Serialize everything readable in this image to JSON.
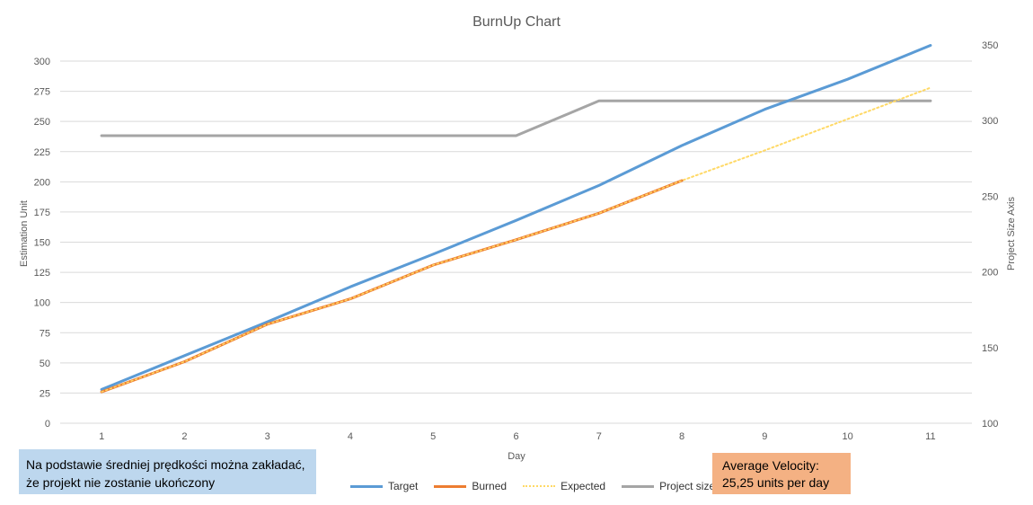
{
  "chart_data": {
    "type": "line",
    "title": "BurnUp Chart",
    "xlabel": "Day",
    "ylabel": "Estimation Unit",
    "y2label": "Project Size Axis",
    "x": [
      1,
      2,
      3,
      4,
      5,
      6,
      7,
      8,
      9,
      10,
      11
    ],
    "ylim": [
      0,
      300
    ],
    "yticks": [
      0,
      25,
      50,
      75,
      100,
      125,
      150,
      175,
      200,
      225,
      250,
      275,
      300
    ],
    "y2lim": [
      100,
      350
    ],
    "y2ticks": [
      100,
      150,
      200,
      250,
      300,
      350
    ],
    "grid": true,
    "legend_position": "bottom",
    "series": [
      {
        "name": "Target",
        "axis": "left",
        "color": "#5b9bd5",
        "style": "solid",
        "values": [
          28,
          56,
          84,
          113,
          140,
          168,
          197,
          230,
          260,
          285,
          313
        ]
      },
      {
        "name": "Burned",
        "axis": "left",
        "color": "#ed7d31",
        "style": "solid",
        "values": [
          26,
          51,
          82,
          103,
          131,
          152,
          174,
          201,
          null,
          null,
          null
        ]
      },
      {
        "name": "Expected",
        "axis": "left",
        "color": "#ffd966",
        "style": "dotted",
        "values": [
          26,
          51,
          82,
          103,
          131,
          152,
          174,
          201,
          226,
          252,
          278
        ]
      },
      {
        "name": "Project size",
        "axis": "right",
        "color": "#a5a5a5",
        "style": "solid",
        "values": [
          290,
          290,
          290,
          290,
          290,
          290,
          313,
          313,
          313,
          313,
          313
        ]
      }
    ]
  },
  "notes": {
    "left": "Na podstawie średniej prędkości można zakładać, że projekt nie zostanie ukończony",
    "velocity_line1": "Average Velocity:",
    "velocity_line2": "25,25 units per day"
  }
}
